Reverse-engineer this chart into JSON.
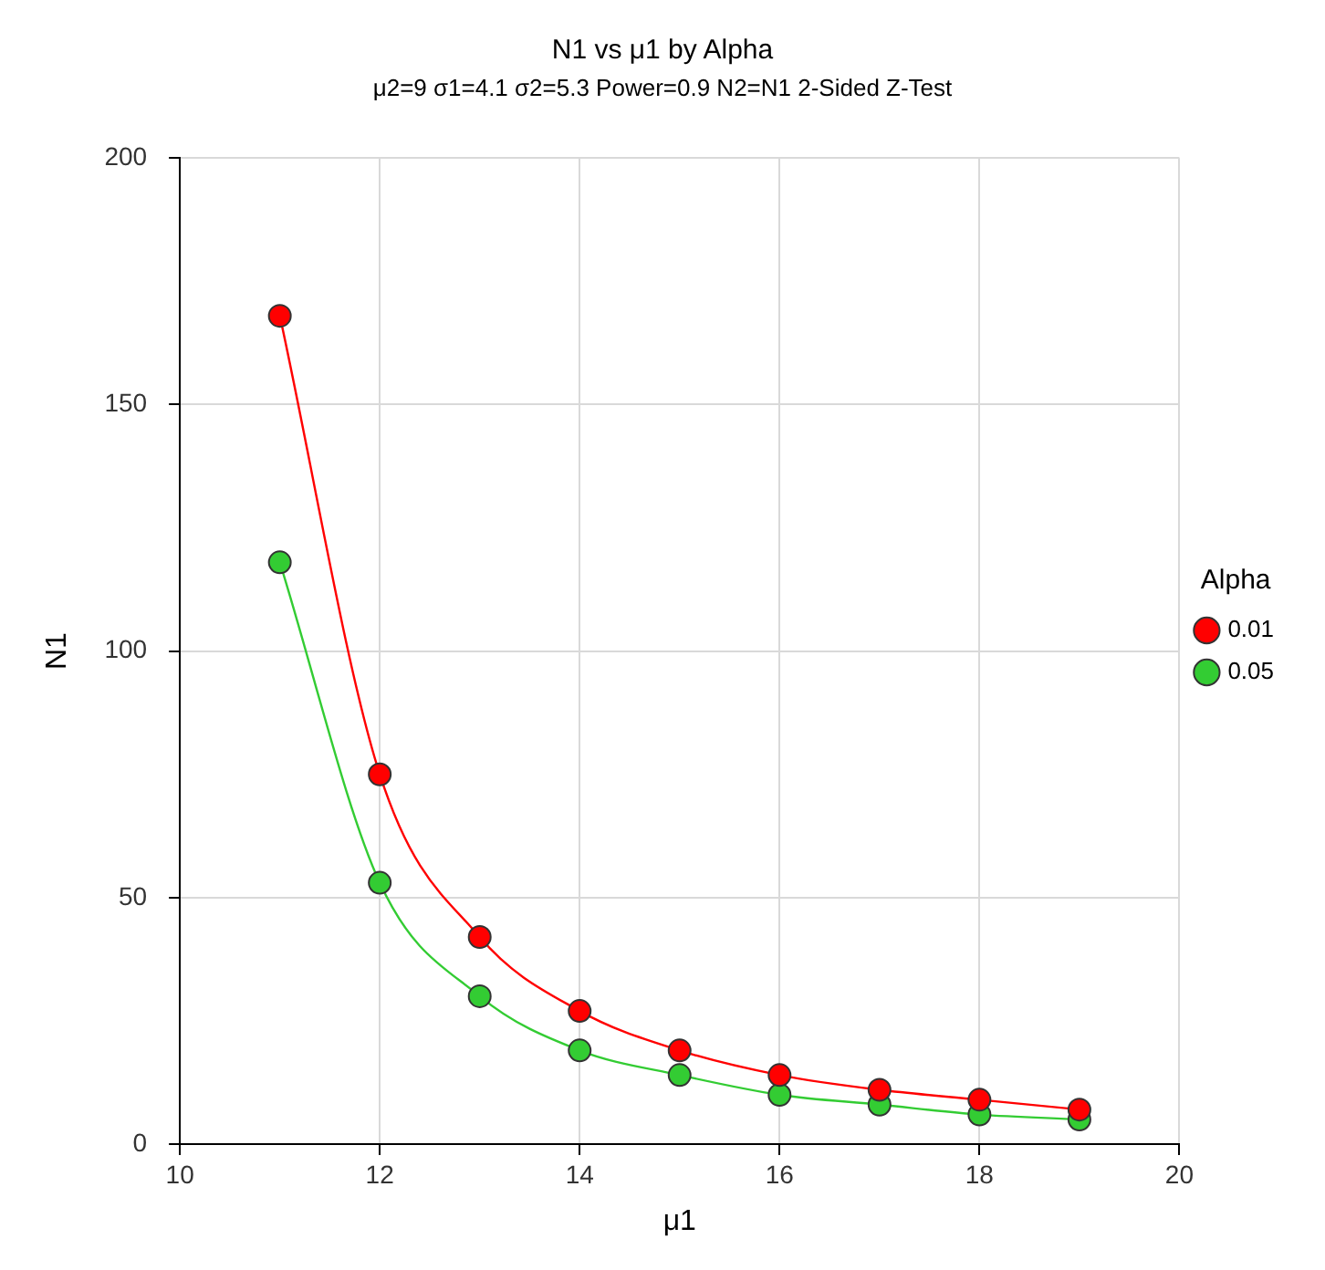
{
  "chart_data": {
    "type": "line",
    "title": "N1 vs μ1 by Alpha",
    "subtitle": "μ2=9 σ1=4.1 σ2=5.3 Power=0.9 N2=N1 2-Sided Z-Test",
    "xlabel": "μ1",
    "ylabel": "N1",
    "legend_title": "Alpha",
    "x": [
      11,
      12,
      13,
      14,
      15,
      16,
      17,
      18,
      19
    ],
    "series": [
      {
        "name": "0.01",
        "color": "#ff0000",
        "values": [
          168,
          75,
          42,
          27,
          19,
          14,
          11,
          9,
          7
        ]
      },
      {
        "name": "0.05",
        "color": "#33cc33",
        "values": [
          118,
          53,
          30,
          19,
          14,
          10,
          8,
          6,
          5
        ]
      }
    ],
    "xlim": [
      10,
      20
    ],
    "xticks": [
      10,
      12,
      14,
      16,
      18,
      20
    ],
    "ylim": [
      0,
      200
    ],
    "yticks": [
      0,
      50,
      100,
      150,
      200
    ],
    "grid": true,
    "legend": "right",
    "marker": "circle"
  }
}
